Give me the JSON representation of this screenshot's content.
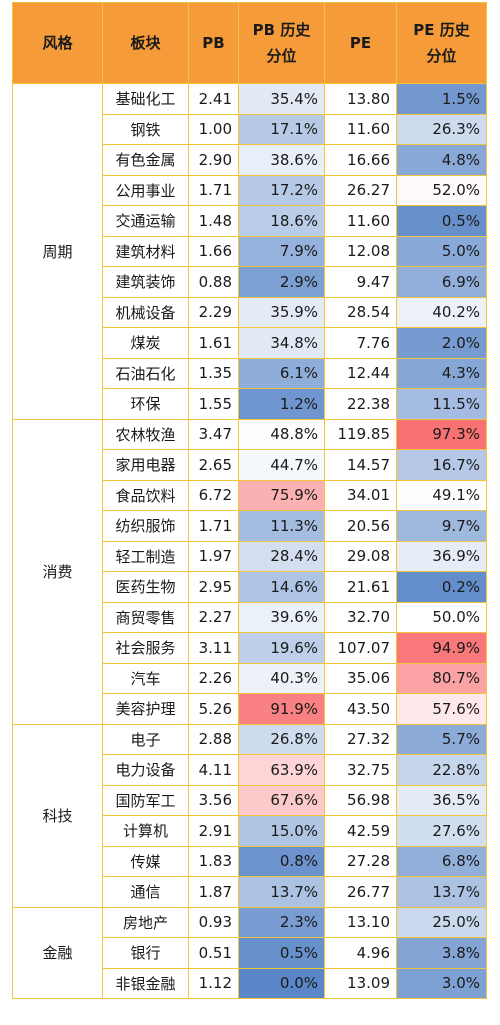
{
  "header": {
    "style": "风格",
    "sector": "板块",
    "pb": "PB",
    "pb_pct": "PB 历史\n分位",
    "pe": "PE",
    "pe_pct": "PE 历史\n分位"
  },
  "colors": {
    "header_bg": "#F59B3A",
    "border": "#F2C43A",
    "low": "#5B87C8",
    "mid": "#FFFFFF",
    "high": "#F8696B"
  },
  "chart_data": {
    "type": "table",
    "columns": [
      "风格",
      "板块",
      "PB",
      "PB 历史分位",
      "PE",
      "PE 历史分位"
    ],
    "groups": [
      {
        "style": "周期",
        "rows": [
          {
            "sector": "基础化工",
            "pb": "2.41",
            "pb_pct": "35.4%",
            "pe": "13.80",
            "pe_pct": "1.5%"
          },
          {
            "sector": "钢铁",
            "pb": "1.00",
            "pb_pct": "17.1%",
            "pe": "11.60",
            "pe_pct": "26.3%"
          },
          {
            "sector": "有色金属",
            "pb": "2.90",
            "pb_pct": "38.6%",
            "pe": "16.66",
            "pe_pct": "4.8%"
          },
          {
            "sector": "公用事业",
            "pb": "1.71",
            "pb_pct": "17.2%",
            "pe": "26.27",
            "pe_pct": "52.0%"
          },
          {
            "sector": "交通运输",
            "pb": "1.48",
            "pb_pct": "18.6%",
            "pe": "11.60",
            "pe_pct": "0.5%"
          },
          {
            "sector": "建筑材料",
            "pb": "1.66",
            "pb_pct": "7.9%",
            "pe": "12.08",
            "pe_pct": "5.0%"
          },
          {
            "sector": "建筑装饰",
            "pb": "0.88",
            "pb_pct": "2.9%",
            "pe": "9.47",
            "pe_pct": "6.9%"
          },
          {
            "sector": "机械设备",
            "pb": "2.29",
            "pb_pct": "35.9%",
            "pe": "28.54",
            "pe_pct": "40.2%"
          },
          {
            "sector": "煤炭",
            "pb": "1.61",
            "pb_pct": "34.8%",
            "pe": "7.76",
            "pe_pct": "2.0%"
          },
          {
            "sector": "石油石化",
            "pb": "1.35",
            "pb_pct": "6.1%",
            "pe": "12.44",
            "pe_pct": "4.3%"
          },
          {
            "sector": "环保",
            "pb": "1.55",
            "pb_pct": "1.2%",
            "pe": "22.38",
            "pe_pct": "11.5%"
          }
        ]
      },
      {
        "style": "消费",
        "rows": [
          {
            "sector": "农林牧渔",
            "pb": "3.47",
            "pb_pct": "48.8%",
            "pe": "119.85",
            "pe_pct": "97.3%"
          },
          {
            "sector": "家用电器",
            "pb": "2.65",
            "pb_pct": "44.7%",
            "pe": "14.57",
            "pe_pct": "16.7%"
          },
          {
            "sector": "食品饮料",
            "pb": "6.72",
            "pb_pct": "75.9%",
            "pe": "34.01",
            "pe_pct": "49.1%"
          },
          {
            "sector": "纺织服饰",
            "pb": "1.71",
            "pb_pct": "11.3%",
            "pe": "20.56",
            "pe_pct": "9.7%"
          },
          {
            "sector": "轻工制造",
            "pb": "1.97",
            "pb_pct": "28.4%",
            "pe": "29.08",
            "pe_pct": "36.9%"
          },
          {
            "sector": "医药生物",
            "pb": "2.95",
            "pb_pct": "14.6%",
            "pe": "21.61",
            "pe_pct": "0.2%"
          },
          {
            "sector": "商贸零售",
            "pb": "2.27",
            "pb_pct": "39.6%",
            "pe": "32.70",
            "pe_pct": "50.0%"
          },
          {
            "sector": "社会服务",
            "pb": "3.11",
            "pb_pct": "19.6%",
            "pe": "107.07",
            "pe_pct": "94.9%"
          },
          {
            "sector": "汽车",
            "pb": "2.26",
            "pb_pct": "40.3%",
            "pe": "35.06",
            "pe_pct": "80.7%"
          },
          {
            "sector": "美容护理",
            "pb": "5.26",
            "pb_pct": "91.9%",
            "pe": "43.50",
            "pe_pct": "57.6%"
          }
        ]
      },
      {
        "style": "科技",
        "rows": [
          {
            "sector": "电子",
            "pb": "2.88",
            "pb_pct": "26.8%",
            "pe": "27.32",
            "pe_pct": "5.7%"
          },
          {
            "sector": "电力设备",
            "pb": "4.11",
            "pb_pct": "63.9%",
            "pe": "32.75",
            "pe_pct": "22.8%"
          },
          {
            "sector": "国防军工",
            "pb": "3.56",
            "pb_pct": "67.6%",
            "pe": "56.98",
            "pe_pct": "36.5%"
          },
          {
            "sector": "计算机",
            "pb": "2.91",
            "pb_pct": "15.0%",
            "pe": "42.59",
            "pe_pct": "27.6%"
          },
          {
            "sector": "传媒",
            "pb": "1.83",
            "pb_pct": "0.8%",
            "pe": "27.28",
            "pe_pct": "6.8%"
          },
          {
            "sector": "通信",
            "pb": "1.87",
            "pb_pct": "13.7%",
            "pe": "26.77",
            "pe_pct": "13.7%"
          }
        ]
      },
      {
        "style": "金融",
        "rows": [
          {
            "sector": "房地产",
            "pb": "0.93",
            "pb_pct": "2.3%",
            "pe": "13.10",
            "pe_pct": "25.0%"
          },
          {
            "sector": "银行",
            "pb": "0.51",
            "pb_pct": "0.5%",
            "pe": "4.96",
            "pe_pct": "3.8%"
          },
          {
            "sector": "非银金融",
            "pb": "1.12",
            "pb_pct": "0.0%",
            "pe": "13.09",
            "pe_pct": "3.0%"
          }
        ]
      }
    ]
  }
}
